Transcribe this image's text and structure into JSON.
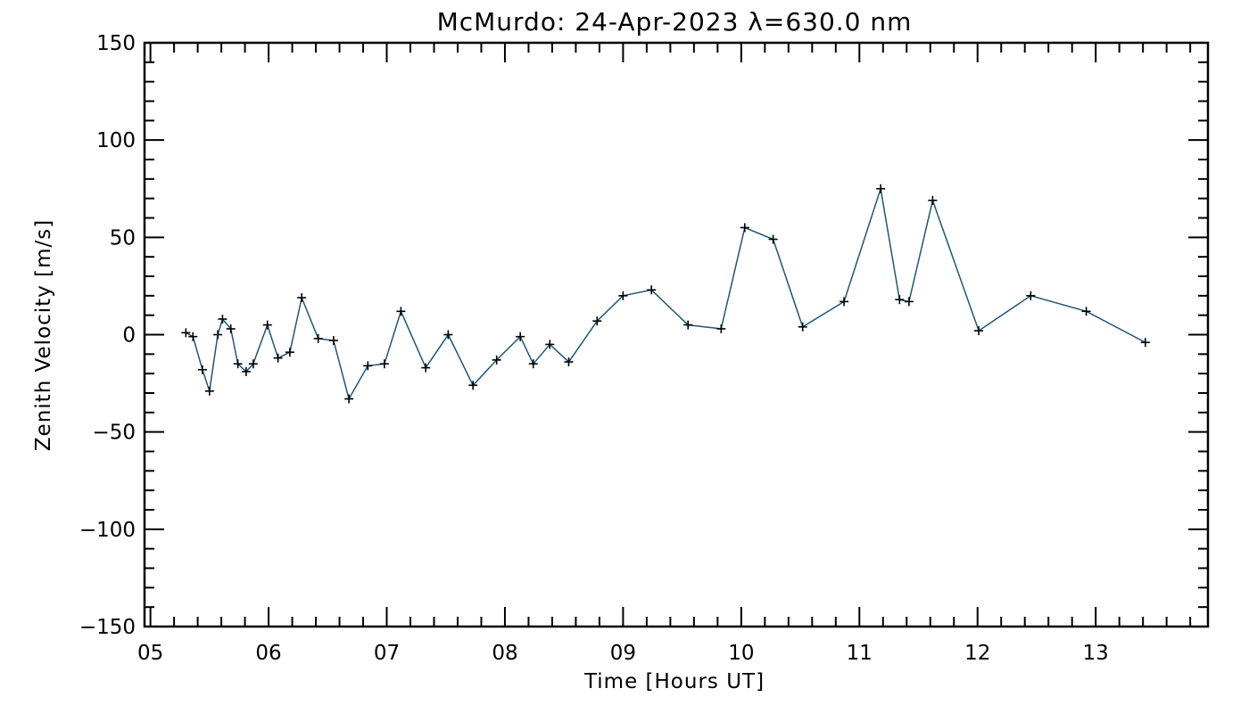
{
  "chart_data": {
    "type": "line",
    "title": "McMurdo: 24-Apr-2023 λ=630.0 nm",
    "xlabel": "Time [Hours UT]",
    "ylabel": "Zenith Velocity [m/s]",
    "xlim": [
      4.95,
      13.95
    ],
    "ylim": [
      -150,
      150
    ],
    "x_ticks": [
      5,
      6,
      7,
      8,
      9,
      10,
      11,
      12,
      13
    ],
    "x_tick_labels": [
      "05",
      "06",
      "07",
      "08",
      "09",
      "10",
      "11",
      "12",
      "13"
    ],
    "y_ticks": [
      -150,
      -100,
      -50,
      0,
      50,
      100,
      150
    ],
    "y_tick_labels": [
      "−150",
      "−100",
      "−50",
      "0",
      "50",
      "100",
      "150"
    ],
    "grid": false,
    "line_color": "#1d5678",
    "marker": "plus",
    "series": [
      {
        "x": [
          5.3,
          5.36,
          5.44,
          5.5,
          5.57,
          5.61,
          5.68,
          5.74,
          5.81,
          5.87,
          5.99,
          6.08,
          6.18,
          6.28,
          6.42,
          6.55,
          6.68,
          6.84,
          6.98,
          7.12,
          7.33,
          7.52,
          7.73,
          7.93,
          8.13,
          8.24,
          8.38,
          8.54,
          8.78,
          9.0,
          9.24,
          9.55,
          9.83,
          10.03,
          10.27,
          10.52,
          10.87,
          11.18,
          11.34,
          11.42,
          11.62,
          12.01,
          12.45,
          12.92,
          13.42
        ],
        "values": [
          1,
          -1,
          -18,
          -29,
          0,
          8,
          3,
          -15,
          -19,
          -15,
          5,
          -12,
          -9,
          19,
          -2,
          -3,
          -33,
          -16,
          -15,
          12,
          -17,
          0,
          -26,
          -13,
          -1,
          -15,
          -5,
          -14,
          7,
          20,
          23,
          5,
          3,
          55,
          49,
          4,
          17,
          75,
          18,
          17,
          69,
          2,
          20,
          12,
          -4
        ]
      }
    ]
  }
}
